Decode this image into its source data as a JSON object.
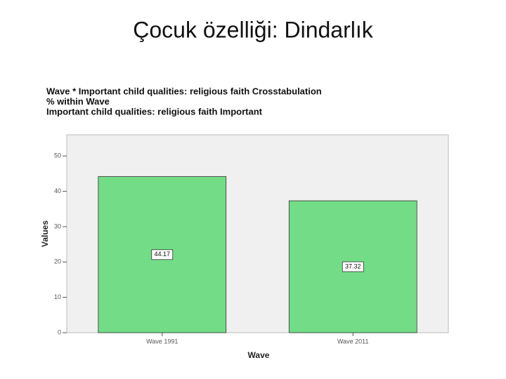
{
  "title": "Çocuk özelliği: Dindarlık",
  "chart_data": {
    "type": "bar",
    "title_lines": [
      "Wave * Important child qualities: religious faith Crosstabulation",
      "% within Wave",
      "Important child qualities: religious faith Important"
    ],
    "x_label": "Wave",
    "y_label": "Values",
    "categories": [
      "Wave 1991",
      "Wave 2011"
    ],
    "values": [
      44.17,
      37.32
    ],
    "color": "#72dc86",
    "ylim": [
      0,
      56
    ],
    "yticks": [
      0,
      10,
      20,
      30,
      40,
      50
    ],
    "show_value_labels": true
  }
}
